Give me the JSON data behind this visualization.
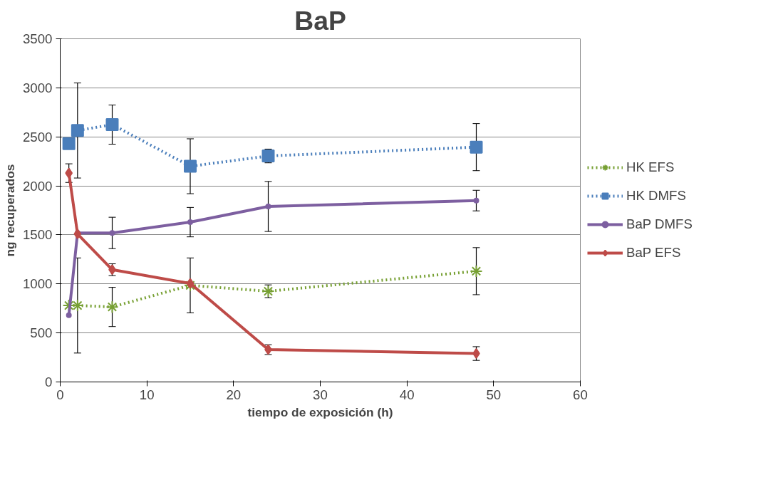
{
  "chart_data": {
    "type": "line",
    "title": "BaP",
    "xlabel": "tiempo de exposición (h)",
    "ylabel": "ng recuperados",
    "x": [
      1,
      2,
      6,
      15,
      24,
      48
    ],
    "xlim": [
      0,
      60
    ],
    "xticks": [
      0,
      10,
      20,
      30,
      40,
      50,
      60
    ],
    "ylim": [
      0,
      3500
    ],
    "yticks": [
      0,
      500,
      1000,
      1500,
      2000,
      2500,
      3000,
      3500
    ],
    "grid": "y",
    "legend": "right",
    "series": [
      {
        "name": "HK EFS",
        "color": "#77a033",
        "marker": "cross",
        "line_style": "dotted",
        "values": [
          780,
          780,
          765,
          985,
          925,
          1130
        ],
        "errors": [
          null,
          485,
          200,
          280,
          65,
          240
        ]
      },
      {
        "name": "HK DMFS",
        "color": "#4a7ebb",
        "marker": "square",
        "line_style": "dotted",
        "values": [
          2430,
          2565,
          2625,
          2200,
          2305,
          2395
        ],
        "errors": [
          null,
          485,
          200,
          280,
          70,
          240
        ]
      },
      {
        "name": "BaP DMFS",
        "color": "#7d5fa0",
        "marker": "circle",
        "line_style": "solid",
        "values": [
          680,
          1520,
          1520,
          1630,
          1790,
          1850
        ],
        "errors": [
          null,
          null,
          160,
          150,
          255,
          105
        ]
      },
      {
        "name": "BaP EFS",
        "color": "#be4b48",
        "marker": "diamond",
        "line_style": "solid",
        "values": [
          2130,
          1510,
          1145,
          1005,
          330,
          290
        ],
        "errors": [
          95,
          null,
          60,
          null,
          50,
          70
        ]
      }
    ]
  }
}
